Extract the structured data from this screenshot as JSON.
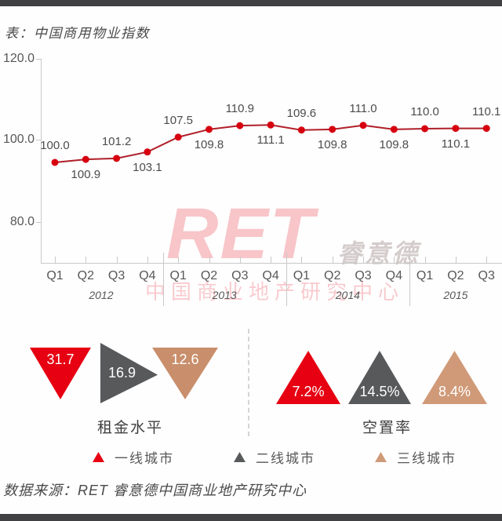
{
  "page": {
    "title": "表：中国商用物业指数",
    "source": "数据来源：RET 睿意德中国商业地产研究中心"
  },
  "watermark": {
    "brand": "RET",
    "brand_cn": "睿意德",
    "subtitle": "中国商业地产研究中心"
  },
  "chart_data": {
    "type": "line",
    "title": "中国商用物业指数",
    "categories": [
      "Q1",
      "Q2",
      "Q3",
      "Q4",
      "Q1",
      "Q2",
      "Q3",
      "Q4",
      "Q1",
      "Q2",
      "Q3",
      "Q4",
      "Q1",
      "Q2",
      "Q3"
    ],
    "year_groups": [
      {
        "label": "2012",
        "quarters": 4
      },
      {
        "label": "2013",
        "quarters": 4
      },
      {
        "label": "2014",
        "quarters": 4
      },
      {
        "label": "2015",
        "quarters": 3
      }
    ],
    "series": [
      {
        "name": "中国商用物业指数",
        "values": [
          100.0,
          100.9,
          101.2,
          103.1,
          107.5,
          109.8,
          110.9,
          111.1,
          109.6,
          109.8,
          111.0,
          109.8,
          110.0,
          110.1,
          110.1
        ]
      }
    ],
    "y_ticks": [
      "120.0",
      "100.0",
      "80.0"
    ],
    "ylim": [
      70,
      120
    ],
    "grid": false,
    "legend_position": "none",
    "line_color": "#b01f29",
    "point_color": "#d7000f"
  },
  "metrics": {
    "rent": {
      "label": "租金水平",
      "items": [
        {
          "city_tier": "一线城市",
          "value": "31.7",
          "color": "#e60012",
          "direction": "down"
        },
        {
          "city_tier": "二线城市",
          "value": "16.9",
          "color": "#58595b",
          "direction": "right"
        },
        {
          "city_tier": "三线城市",
          "value": "12.6",
          "color": "#c98e6b",
          "direction": "down"
        }
      ]
    },
    "vacancy": {
      "label": "空置率",
      "items": [
        {
          "city_tier": "一线城市",
          "value": "7.2%",
          "color": "#e60012",
          "direction": "up"
        },
        {
          "city_tier": "二线城市",
          "value": "14.5%",
          "color": "#58595b",
          "direction": "up"
        },
        {
          "city_tier": "三线城市",
          "value": "8.4%",
          "color": "#d09a78",
          "direction": "up"
        }
      ]
    }
  },
  "legend": [
    {
      "label": "一线城市",
      "color": "#e60012"
    },
    {
      "label": "二线城市",
      "color": "#58595b"
    },
    {
      "label": "三线城市",
      "color": "#cf9a78"
    }
  ]
}
